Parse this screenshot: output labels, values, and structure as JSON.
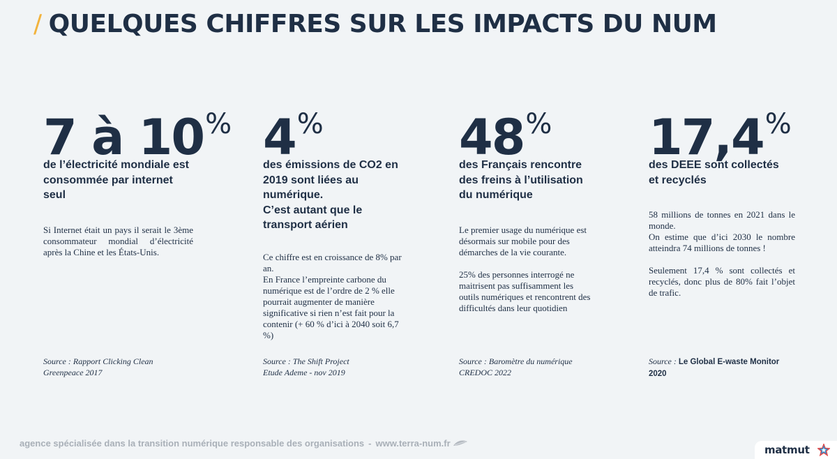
{
  "header": {
    "slash": "/",
    "title": "QUELQUES CHIFFRES SUR LES IMPACTS DU NUM"
  },
  "stats": [
    {
      "value": "7 à 10",
      "unit": "%",
      "headline": "de l’électricité mondiale est consommée par internet seul",
      "body": [
        "Si Internet était un pays il serait le 3ème consommateur mondial d’électricité après la Chine et les États-Unis."
      ],
      "source_line1": "Source : Rapport Clicking Clean",
      "source_line2": "Greenpeace 2017"
    },
    {
      "value": "4",
      "unit": "%",
      "headline_1": "des émissions de CO2 en 2019 sont liées au numérique.",
      "headline_2": "C’est autant que le transport aérien",
      "body": [
        "Ce chiffre est en croissance de 8% par an.",
        "En France l’empreinte carbone du numérique est de l’ordre de 2 % elle pourrait augmenter de manière significative si rien n’est fait pour la contenir (+ 60 % d’ici à 2040 soit 6,7 %)"
      ],
      "source_line1": "Source : The Shift Project",
      "source_line2": "Etude Ademe - nov 2019"
    },
    {
      "value": "48",
      "unit": "%",
      "headline": "des Français rencontre des freins à l’utilisation du numérique",
      "body": [
        "Le premier usage du numérique est désormais sur mobile pour des démarches de la vie courante.",
        "25% des personnes interrogé ne maitrisent pas suffisamment les outils numériques et rencontrent des difficultés dans leur quotidien"
      ],
      "source_line1": "Source : Baromètre du numérique",
      "source_line2": "CREDOC 2022"
    },
    {
      "value": "17,4",
      "unit": "%",
      "headline": "des DEEE sont collectés et recyclés",
      "body": [
        "58 millions de tonnes en 2021 dans le monde.",
        "On estime que d’ici 2030 le nombre atteindra 74 millions de tonnes !",
        "Seulement 17,4 % sont collectés et recyclés, donc plus de 80% fait l’objet de trafic."
      ],
      "source_prefix": "Source : ",
      "source_strong": "Le Global E-waste Monitor 2020"
    }
  ],
  "footer": {
    "tagline": "agence spécialisée dans la transition numérique responsable des organisations",
    "separator": "-",
    "url": "www.terra-num.fr"
  },
  "logo": {
    "text": "matmut"
  },
  "colors": {
    "navy": "#1f2f45",
    "accent": "#f2b33d",
    "footer_gray": "#a9b0b8",
    "background": "#f1f4f6"
  }
}
